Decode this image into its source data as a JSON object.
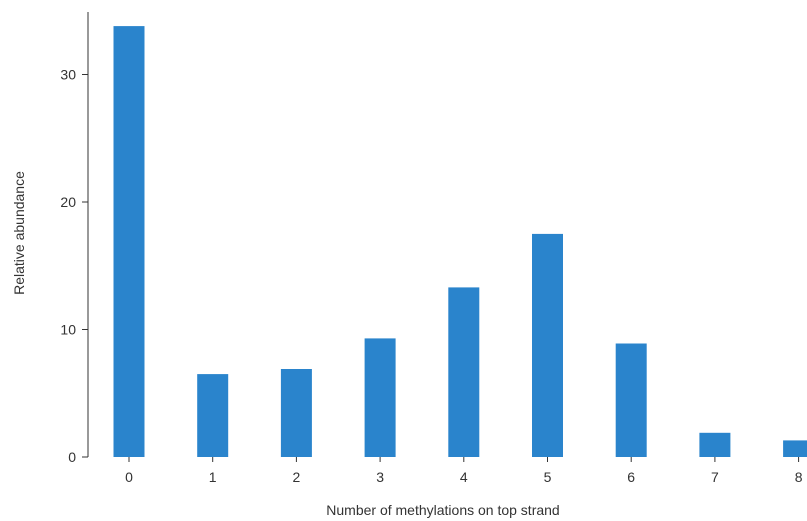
{
  "chart_data": {
    "type": "bar",
    "title": "",
    "xlabel": "Number of methylations on top strand",
    "ylabel": "Relative abundance",
    "categories": [
      "0",
      "1",
      "2",
      "3",
      "4",
      "5",
      "6",
      "7",
      "8"
    ],
    "values": [
      33.8,
      6.5,
      6.9,
      9.3,
      13.3,
      17.5,
      8.9,
      1.9,
      1.3
    ],
    "ylim": [
      0,
      35
    ],
    "yticks": [
      0,
      10,
      20,
      30
    ],
    "grid": false,
    "legend": "none",
    "bar_color": "#2a84cc"
  }
}
